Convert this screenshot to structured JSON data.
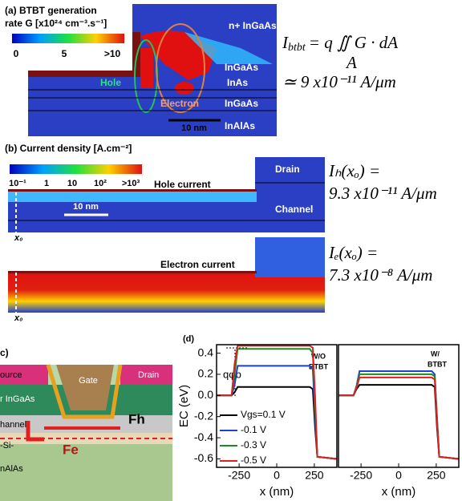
{
  "panel_a": {
    "title": "(a) BTBT generation",
    "title_2": "rate G [x10²⁴ cm⁻³.s⁻¹]",
    "colorbar_labels": [
      "0",
      "5",
      ">10"
    ],
    "regions": [
      "n+ InGaAs",
      "InGaAs",
      "InAs",
      "InGaAs",
      "InAlAs"
    ],
    "hole": "Hole",
    "electron": "Electron",
    "scale": "10 nm",
    "equation": {
      "lhs": "I",
      "lhs_sub": "btbt",
      "rhs": "= q ∬ G · dA",
      "limit": "A",
      "result": "≃ 9 x10⁻¹¹ A/μm"
    }
  },
  "panel_b": {
    "title": "(b) Current density  [A.cm⁻²]",
    "colorbar_labels": [
      "10⁻¹",
      "1",
      "10",
      "10²",
      ">10³"
    ],
    "drain": "Drain",
    "channel": "Channel",
    "hole_current": "Hole current",
    "electron_current": "Electron current",
    "scale": "10 nm",
    "position_label": "x₀",
    "hole_eq": [
      "Iₕ(xₒ) =",
      "9.3 x10⁻¹¹ A/μm"
    ],
    "electron_eq": [
      "Iₑ(xₒ) =",
      "7.3 x10⁻⁸ A/μm"
    ]
  },
  "panel_c": {
    "label": "c)",
    "source": "ource",
    "gate": "Gate",
    "drain": "Drain",
    "ingaas": "r InGaAs",
    "channel": "hannel",
    "si": "-Si-",
    "inalas": "nAlAs",
    "fh": "Fh",
    "fe": "Fe"
  },
  "chart_data": [
    {
      "type": "line",
      "panel_label": "(d)",
      "xlabel": "x (nm)",
      "ylabel": "EC (eV)",
      "annotations": [
        "qφb",
        "W/O",
        "BTBT"
      ],
      "xlim": [
        -400,
        400
      ],
      "ylim": [
        -0.68,
        0.48
      ],
      "xticks": [
        -250,
        0,
        250
      ],
      "yticks": [
        -0.6,
        -0.4,
        -0.2,
        {
          "value": 0,
          "label": "0.0"
        },
        0.2,
        0.4
      ],
      "legend": "lower left",
      "x": [
        -400,
        -330,
        -300,
        -280,
        -260,
        220,
        240,
        255,
        270,
        400
      ],
      "series": [
        {
          "name": "Vgs=0.1 V",
          "color": "#000000",
          "values": [
            0,
            0,
            0,
            0.03,
            0.08,
            0.08,
            0.06,
            -0.3,
            -0.58,
            -0.6
          ]
        },
        {
          "name": "-0.1 V",
          "color": "#1f3fd6",
          "values": [
            0,
            0,
            0,
            0.1,
            0.28,
            0.28,
            0.25,
            -0.2,
            -0.58,
            -0.6
          ]
        },
        {
          "name": "-0.3 V",
          "color": "#1e8a1e",
          "values": [
            0,
            0,
            0,
            0.2,
            0.44,
            0.44,
            0.4,
            -0.1,
            -0.58,
            -0.6
          ]
        },
        {
          "name": "-0.5 V",
          "color": "#e02020",
          "values": [
            0,
            0,
            0,
            0.3,
            0.47,
            0.47,
            0.45,
            0,
            -0.58,
            -0.6
          ]
        }
      ]
    },
    {
      "type": "line",
      "xlabel": "x (nm)",
      "annotations": [
        "W/",
        "BTBT"
      ],
      "xlim": [
        -400,
        400
      ],
      "ylim": [
        -0.68,
        0.48
      ],
      "xticks": [
        -250,
        0,
        250
      ],
      "x": [
        -400,
        -330,
        -300,
        -280,
        -260,
        220,
        240,
        255,
        270,
        400
      ],
      "series": [
        {
          "name": "Vgs=0.1 V",
          "color": "#000000",
          "values": [
            0,
            0,
            0,
            0.06,
            0.1,
            0.1,
            0.08,
            -0.3,
            -0.58,
            -0.6
          ]
        },
        {
          "name": "-0.1 V",
          "color": "#1f3fd6",
          "values": [
            0,
            0,
            0,
            0.09,
            0.23,
            0.23,
            0.2,
            -0.2,
            -0.58,
            -0.6
          ]
        },
        {
          "name": "-0.3 V",
          "color": "#1e8a1e",
          "values": [
            0,
            0,
            0,
            0.08,
            0.2,
            0.2,
            0.18,
            -0.22,
            -0.58,
            -0.6
          ]
        },
        {
          "name": "-0.5 V",
          "color": "#e02020",
          "values": [
            0,
            0,
            0,
            0.07,
            0.17,
            0.17,
            0.15,
            -0.25,
            -0.58,
            -0.6
          ]
        }
      ]
    }
  ]
}
